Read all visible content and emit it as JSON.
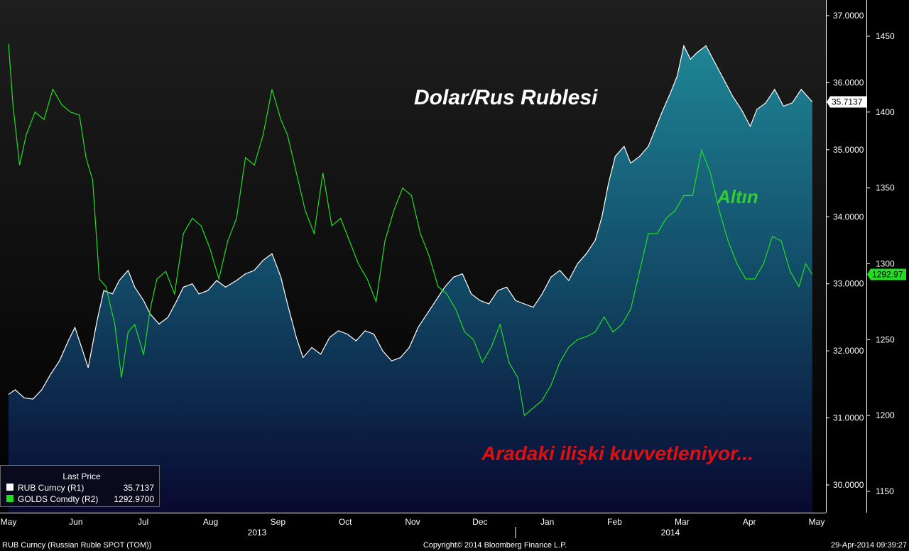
{
  "chart_data": {
    "type": "line",
    "x_axis": {
      "months": [
        "May",
        "Jun",
        "Jul",
        "Aug",
        "Sep",
        "Oct",
        "Nov",
        "Dec",
        "Jan",
        "Feb",
        "Mar",
        "Apr",
        "May"
      ],
      "years": [
        "2013",
        "2014"
      ],
      "range": [
        "2013-05-01",
        "2014-05-01"
      ]
    },
    "y_axis_right_1": {
      "ticks": [
        "37.0000",
        "36.0000",
        "35.0000",
        "34.0000",
        "33.0000",
        "32.0000",
        "31.0000",
        "30.0000"
      ],
      "range": [
        29.65,
        37.15
      ]
    },
    "y_axis_right_2": {
      "ticks": [
        "1450",
        "1400",
        "1350",
        "1300",
        "1250",
        "1200",
        "1150"
      ],
      "range": [
        1150,
        1460
      ]
    },
    "grid": false,
    "legend_placement": "bottom-left",
    "legend_title": "Last Price",
    "series": [
      {
        "name": "RUB Curncy (R1)",
        "axis": "R1",
        "color": "#ffffff",
        "style": "area",
        "last_value": 35.7137,
        "last_label": "35.7137",
        "legend_value": "35.7137",
        "points": [
          [
            "2013-05-01",
            31.35
          ],
          [
            "2013-05-04",
            31.42
          ],
          [
            "2013-05-08",
            31.3
          ],
          [
            "2013-05-12",
            31.28
          ],
          [
            "2013-05-16",
            31.42
          ],
          [
            "2013-05-20",
            31.65
          ],
          [
            "2013-05-24",
            31.85
          ],
          [
            "2013-05-28",
            32.15
          ],
          [
            "2013-05-31",
            32.35
          ],
          [
            "2013-06-03",
            32.05
          ],
          [
            "2013-06-06",
            31.75
          ],
          [
            "2013-06-10",
            32.45
          ],
          [
            "2013-06-13",
            32.9
          ],
          [
            "2013-06-17",
            32.85
          ],
          [
            "2013-06-20",
            33.05
          ],
          [
            "2013-06-24",
            33.2
          ],
          [
            "2013-06-27",
            32.95
          ],
          [
            "2013-07-01",
            32.75
          ],
          [
            "2013-07-04",
            32.55
          ],
          [
            "2013-07-08",
            32.4
          ],
          [
            "2013-07-12",
            32.5
          ],
          [
            "2013-07-16",
            32.75
          ],
          [
            "2013-07-19",
            32.95
          ],
          [
            "2013-07-23",
            33.0
          ],
          [
            "2013-07-26",
            32.85
          ],
          [
            "2013-07-30",
            32.9
          ],
          [
            "2013-08-03",
            33.05
          ],
          [
            "2013-08-07",
            32.95
          ],
          [
            "2013-08-12",
            33.05
          ],
          [
            "2013-08-16",
            33.15
          ],
          [
            "2013-08-20",
            33.2
          ],
          [
            "2013-08-24",
            33.35
          ],
          [
            "2013-08-28",
            33.45
          ],
          [
            "2013-09-01",
            33.1
          ],
          [
            "2013-09-04",
            32.7
          ],
          [
            "2013-09-08",
            32.2
          ],
          [
            "2013-09-11",
            31.9
          ],
          [
            "2013-09-15",
            32.05
          ],
          [
            "2013-09-19",
            31.95
          ],
          [
            "2013-09-23",
            32.2
          ],
          [
            "2013-09-27",
            32.3
          ],
          [
            "2013-10-01",
            32.25
          ],
          [
            "2013-10-05",
            32.15
          ],
          [
            "2013-10-09",
            32.3
          ],
          [
            "2013-10-13",
            32.25
          ],
          [
            "2013-10-17",
            32.0
          ],
          [
            "2013-10-21",
            31.85
          ],
          [
            "2013-10-25",
            31.9
          ],
          [
            "2013-10-29",
            32.05
          ],
          [
            "2013-11-02",
            32.35
          ],
          [
            "2013-11-06",
            32.55
          ],
          [
            "2013-11-10",
            32.75
          ],
          [
            "2013-11-14",
            32.95
          ],
          [
            "2013-11-18",
            33.1
          ],
          [
            "2013-11-22",
            33.15
          ],
          [
            "2013-11-26",
            32.85
          ],
          [
            "2013-11-30",
            32.75
          ],
          [
            "2013-12-04",
            32.7
          ],
          [
            "2013-12-08",
            32.9
          ],
          [
            "2013-12-12",
            32.95
          ],
          [
            "2013-12-16",
            32.75
          ],
          [
            "2013-12-20",
            32.7
          ],
          [
            "2013-12-24",
            32.65
          ],
          [
            "2013-12-28",
            32.85
          ],
          [
            "2014-01-01",
            33.1
          ],
          [
            "2014-01-05",
            33.2
          ],
          [
            "2014-01-09",
            33.05
          ],
          [
            "2014-01-13",
            33.3
          ],
          [
            "2014-01-17",
            33.45
          ],
          [
            "2014-01-21",
            33.65
          ],
          [
            "2014-01-24",
            34.0
          ],
          [
            "2014-01-27",
            34.5
          ],
          [
            "2014-01-30",
            34.9
          ],
          [
            "2014-02-03",
            35.05
          ],
          [
            "2014-02-06",
            34.8
          ],
          [
            "2014-02-10",
            34.9
          ],
          [
            "2014-02-14",
            35.05
          ],
          [
            "2014-02-17",
            35.3
          ],
          [
            "2014-02-20",
            35.55
          ],
          [
            "2014-02-24",
            35.85
          ],
          [
            "2014-02-27",
            36.1
          ],
          [
            "2014-03-02",
            36.55
          ],
          [
            "2014-03-05",
            36.35
          ],
          [
            "2014-03-08",
            36.45
          ],
          [
            "2014-03-12",
            36.55
          ],
          [
            "2014-03-16",
            36.3
          ],
          [
            "2014-03-20",
            36.05
          ],
          [
            "2014-03-24",
            35.8
          ],
          [
            "2014-03-28",
            35.6
          ],
          [
            "2014-04-01",
            35.35
          ],
          [
            "2014-04-04",
            35.6
          ],
          [
            "2014-04-08",
            35.7
          ],
          [
            "2014-04-12",
            35.9
          ],
          [
            "2014-04-16",
            35.65
          ],
          [
            "2014-04-20",
            35.7
          ],
          [
            "2014-04-24",
            35.9
          ],
          [
            "2014-04-29",
            35.7137
          ]
        ]
      },
      {
        "name": "GOLDS Comdty (R2)",
        "axis": "R2",
        "color": "#22dd22",
        "style": "line",
        "last_value": 1292.97,
        "last_label": "1292.97",
        "legend_value": "1292.9700",
        "points": [
          [
            "2013-05-01",
            1445
          ],
          [
            "2013-05-03",
            1405
          ],
          [
            "2013-05-06",
            1365
          ],
          [
            "2013-05-09",
            1385
          ],
          [
            "2013-05-13",
            1400
          ],
          [
            "2013-05-17",
            1395
          ],
          [
            "2013-05-21",
            1415
          ],
          [
            "2013-05-25",
            1405
          ],
          [
            "2013-05-29",
            1400
          ],
          [
            "2013-06-02",
            1398
          ],
          [
            "2013-06-05",
            1370
          ],
          [
            "2013-06-08",
            1355
          ],
          [
            "2013-06-11",
            1290
          ],
          [
            "2013-06-14",
            1285
          ],
          [
            "2013-06-18",
            1260
          ],
          [
            "2013-06-21",
            1225
          ],
          [
            "2013-06-24",
            1255
          ],
          [
            "2013-06-27",
            1260
          ],
          [
            "2013-07-01",
            1240
          ],
          [
            "2013-07-04",
            1270
          ],
          [
            "2013-07-07",
            1290
          ],
          [
            "2013-07-11",
            1295
          ],
          [
            "2013-07-15",
            1280
          ],
          [
            "2013-07-19",
            1320
          ],
          [
            "2013-07-23",
            1330
          ],
          [
            "2013-07-27",
            1325
          ],
          [
            "2013-07-31",
            1310
          ],
          [
            "2013-08-04",
            1290
          ],
          [
            "2013-08-08",
            1315
          ],
          [
            "2013-08-12",
            1330
          ],
          [
            "2013-08-16",
            1370
          ],
          [
            "2013-08-20",
            1365
          ],
          [
            "2013-08-24",
            1385
          ],
          [
            "2013-08-28",
            1415
          ],
          [
            "2013-09-01",
            1395
          ],
          [
            "2013-09-04",
            1385
          ],
          [
            "2013-09-08",
            1360
          ],
          [
            "2013-09-12",
            1335
          ],
          [
            "2013-09-16",
            1320
          ],
          [
            "2013-09-20",
            1360
          ],
          [
            "2013-09-24",
            1325
          ],
          [
            "2013-09-28",
            1330
          ],
          [
            "2013-10-02",
            1315
          ],
          [
            "2013-10-06",
            1300
          ],
          [
            "2013-10-10",
            1290
          ],
          [
            "2013-10-14",
            1275
          ],
          [
            "2013-10-18",
            1315
          ],
          [
            "2013-10-22",
            1335
          ],
          [
            "2013-10-26",
            1350
          ],
          [
            "2013-10-30",
            1345
          ],
          [
            "2013-11-03",
            1320
          ],
          [
            "2013-11-07",
            1305
          ],
          [
            "2013-11-11",
            1285
          ],
          [
            "2013-11-15",
            1280
          ],
          [
            "2013-11-19",
            1270
          ],
          [
            "2013-11-23",
            1255
          ],
          [
            "2013-11-27",
            1250
          ],
          [
            "2013-12-01",
            1235
          ],
          [
            "2013-12-05",
            1245
          ],
          [
            "2013-12-09",
            1260
          ],
          [
            "2013-12-13",
            1235
          ],
          [
            "2013-12-17",
            1225
          ],
          [
            "2013-12-20",
            1200
          ],
          [
            "2013-12-24",
            1205
          ],
          [
            "2013-12-28",
            1210
          ],
          [
            "2014-01-01",
            1220
          ],
          [
            "2014-01-05",
            1235
          ],
          [
            "2014-01-09",
            1245
          ],
          [
            "2014-01-13",
            1250
          ],
          [
            "2014-01-17",
            1252
          ],
          [
            "2014-01-21",
            1255
          ],
          [
            "2014-01-25",
            1265
          ],
          [
            "2014-01-29",
            1255
          ],
          [
            "2014-02-02",
            1260
          ],
          [
            "2014-02-06",
            1270
          ],
          [
            "2014-02-10",
            1295
          ],
          [
            "2014-02-14",
            1320
          ],
          [
            "2014-02-18",
            1320
          ],
          [
            "2014-02-22",
            1330
          ],
          [
            "2014-02-26",
            1335
          ],
          [
            "2014-03-02",
            1345
          ],
          [
            "2014-03-06",
            1345
          ],
          [
            "2014-03-10",
            1375
          ],
          [
            "2014-03-14",
            1360
          ],
          [
            "2014-03-18",
            1335
          ],
          [
            "2014-03-22",
            1315
          ],
          [
            "2014-03-26",
            1300
          ],
          [
            "2014-03-30",
            1290
          ],
          [
            "2014-04-03",
            1290
          ],
          [
            "2014-04-07",
            1300
          ],
          [
            "2014-04-11",
            1318
          ],
          [
            "2014-04-15",
            1315
          ],
          [
            "2014-04-19",
            1295
          ],
          [
            "2014-04-23",
            1285
          ],
          [
            "2014-04-26",
            1300
          ],
          [
            "2014-04-29",
            1292.97
          ]
        ]
      }
    ],
    "annotations": [
      {
        "text": "Dolar/Rus Rublesi",
        "color": "#ffffff"
      },
      {
        "text": "Altın",
        "color": "#33cc33"
      },
      {
        "text": "Aradaki ilişki kuvvetleniyor...",
        "color": "#dd1111"
      }
    ]
  },
  "footer": {
    "left": "RUB Curncy (Russian Ruble SPOT (TOM))",
    "center": "Copyright© 2014 Bloomberg Finance L.P.",
    "right": "29-Apr-2014 09:39:27"
  },
  "colors": {
    "background_top": "#1e1e1e",
    "background_bottom": "#000000",
    "area_top": "#1f7f8f",
    "area_bottom": "#0a0a3a",
    "line_gold": "#22dd22",
    "last_label_gold_bg": "#22dd22",
    "last_label_rub_bg": "#ffffff"
  }
}
